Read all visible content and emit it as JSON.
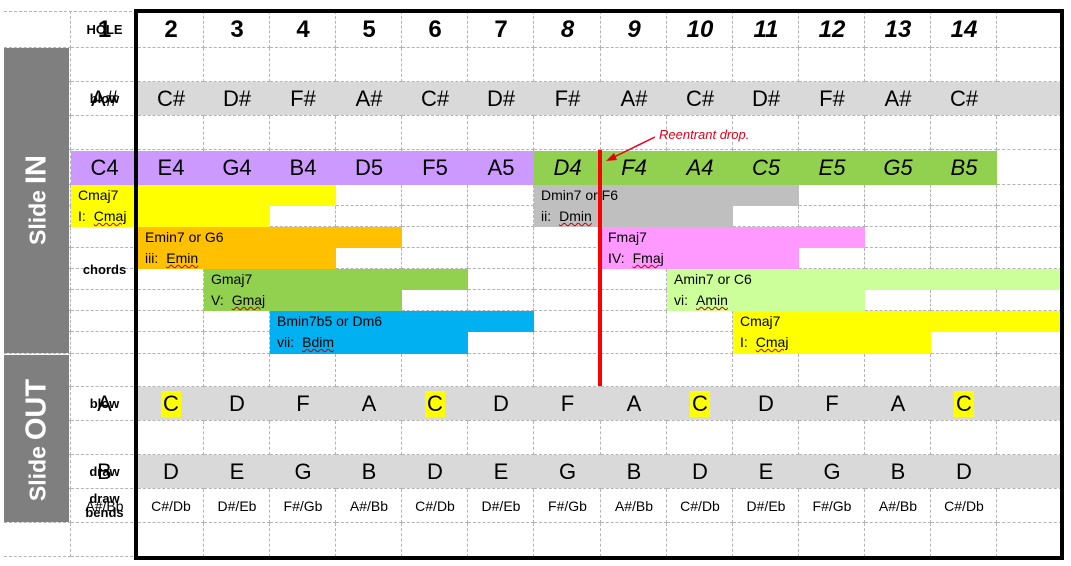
{
  "labels": {
    "hole": "HOLE",
    "blow": "blow",
    "draw": "draw",
    "chords": "chords",
    "draw_bends_1": "draw",
    "draw_bends_2": "bends"
  },
  "sidebar": {
    "in_word": "Slide",
    "in_state": "IN",
    "out_word": "Slide",
    "out_state": "OUT"
  },
  "holes": [
    "1",
    "2",
    "3",
    "4",
    "5",
    "6",
    "7",
    "8",
    "9",
    "10",
    "11",
    "12",
    "13",
    "14"
  ],
  "slide_in": {
    "blow": [
      "A#",
      "C#",
      "D#",
      "F#",
      "A#",
      "C#",
      "D#",
      "F#",
      "A#",
      "C#",
      "D#",
      "F#",
      "A#",
      "C#"
    ],
    "draw": [
      "C4",
      "E4",
      "G4",
      "B4",
      "D5",
      "F5",
      "A5",
      "D4",
      "F4",
      "A4",
      "C5",
      "E5",
      "G5",
      "B5"
    ]
  },
  "chords": [
    {
      "chord": "Cmaj7",
      "degree": "I:",
      "name": "Cmaj",
      "color": "#ffff00"
    },
    {
      "chord": "Emin7 or G6",
      "degree": "iii:",
      "name": "Emin",
      "color": "#ffc000"
    },
    {
      "chord": "Gmaj7",
      "degree": "V:",
      "name": "Gmaj",
      "color": "#92d050"
    },
    {
      "chord": "Bmin7b5 or Dm6",
      "degree": "vii:",
      "name": "Bdim",
      "color": "#00b0f0"
    },
    {
      "chord": "Dmin7 or F6",
      "degree": "ii:",
      "name": "Dmin",
      "color": "#bfbfbf"
    },
    {
      "chord": "Fmaj7",
      "degree": "IV:",
      "name": "Fmaj",
      "color": "#ff99ff"
    },
    {
      "chord": "Amin7 or C6",
      "degree": "vi:",
      "name": "Amin",
      "color": "#ccff99"
    },
    {
      "chord": "Cmaj7",
      "degree": "I:",
      "name": "Cmaj",
      "color": "#ffff00"
    }
  ],
  "annotation": "Reentrant drop.",
  "slide_out": {
    "blow": [
      "A",
      "C",
      "D",
      "F",
      "A",
      "C",
      "D",
      "F",
      "A",
      "C",
      "D",
      "F",
      "A",
      "C"
    ],
    "draw": [
      "B",
      "D",
      "E",
      "G",
      "B",
      "D",
      "E",
      "G",
      "B",
      "D",
      "E",
      "G",
      "B",
      "D"
    ],
    "draw_bends": [
      "A#/Bb",
      "C#/Db",
      "D#/Eb",
      "F#/Gb",
      "A#/Bb",
      "C#/Db",
      "D#/Eb",
      "F#/Gb",
      "A#/Bb",
      "C#/Db",
      "D#/Eb",
      "F#/Gb",
      "A#/Bb",
      "C#/Db"
    ]
  },
  "highlighted_blow_holes": [
    2,
    6,
    10,
    14
  ],
  "colors": {
    "sidebar": "#7f7f7f",
    "row_grey": "#d9d9d9",
    "draw_low": "#cc99ff",
    "draw_high": "#92d050",
    "highlight": "#ffff00",
    "reentrant_line": "#ff0000"
  }
}
